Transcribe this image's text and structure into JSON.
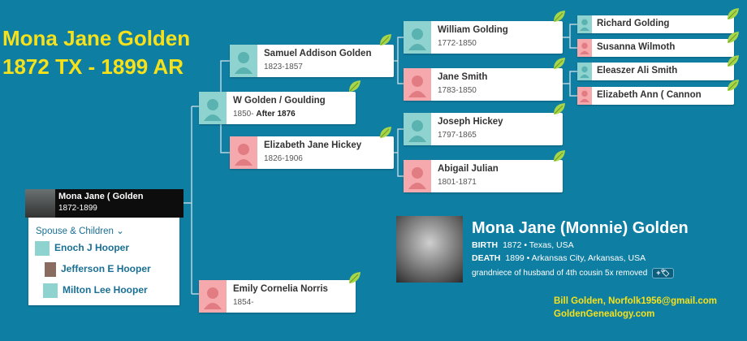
{
  "header": {
    "line1": "Mona Jane Golden",
    "line2": "1872 TX - 1899 AR"
  },
  "focus": {
    "name": "Mona Jane ( Golden",
    "dates": "1872-1899"
  },
  "spouse_panel": {
    "heading": "Spouse & Children",
    "chevron": "⌄",
    "children": [
      "Enoch J Hooper",
      "Jefferson E Hooper",
      "Milton Lee Hooper"
    ]
  },
  "tree": {
    "father": {
      "name": "W Golden / Goulding",
      "dates_prefix": "1850-",
      "dates_bold": "After 1876"
    },
    "mother": {
      "name": "Emily Cornelia Norris",
      "dates": "1854-"
    },
    "pgf": {
      "name": "Samuel Addison Golden",
      "dates": "1823-1857"
    },
    "pgm": {
      "name": "Elizabeth Jane Hickey",
      "dates": "1826-1906"
    },
    "ggf1": {
      "name": "William Golding",
      "dates": "1772-1850"
    },
    "ggm1": {
      "name": "Jane Smith",
      "dates": "1783-1850"
    },
    "ggf2": {
      "name": "Joseph Hickey",
      "dates": "1797-1865"
    },
    "ggm2": {
      "name": "Abigail Julian",
      "dates": "1801-1871"
    },
    "g3f1": {
      "name": "Richard Golding"
    },
    "g3m1": {
      "name": "Susanna Wilmoth"
    },
    "g3f2": {
      "name": "Eleaszer Ali Smith"
    },
    "g3m2": {
      "name": "Elizabeth Ann ( Cannon"
    }
  },
  "profile": {
    "name": "Mona Jane (Monnie) Golden",
    "birth_label": "BIRTH",
    "birth_value": "1872 • Texas, USA",
    "death_label": "DEATH",
    "death_value": "1899 • Arkansas City, Arkansas, USA",
    "relationship": "grandniece of husband of 4th cousin 5x removed",
    "badge": "+🏷"
  },
  "credit": {
    "line1": "Bill Golden, Norfolk1956@gmail.com",
    "line2": "GoldenGenealogy.com"
  },
  "colors": {
    "background": "#0f7ea3",
    "accent_yellow": "#f6e11a",
    "male": "#8fd3d0",
    "female": "#f5a9ad",
    "hint_leaf": "#a8d64a"
  }
}
